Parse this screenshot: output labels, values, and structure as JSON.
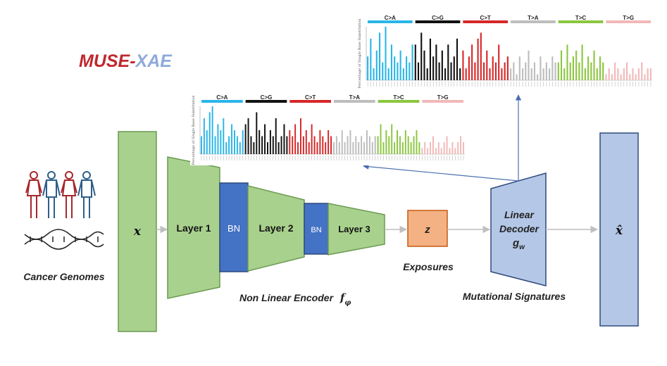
{
  "title": {
    "part1": "MUSE",
    "dash": "-",
    "part2": "XAE"
  },
  "colors": {
    "title_red": "#c0272d",
    "title_blue": "#8ea9db",
    "layer_fill": "#a9d18e",
    "layer_stroke": "#6b9a52",
    "bn_fill": "#4472c4",
    "z_fill": "#f4b183",
    "decoder_fill": "#b4c7e7",
    "decoder_stroke": "#2f4b7c",
    "arrow_gray": "#bfbfbf",
    "arrow_blue": "#4a6fb0",
    "genome_red": "#a6262b",
    "genome_blue": "#2e5f8a"
  },
  "labels": {
    "cancer_genomes": "Cancer Genomes",
    "input_x": "x",
    "layer1": "Layer 1",
    "bn1": "BN",
    "layer2": "Layer 2",
    "bn2": "BN",
    "layer3": "Layer 3",
    "z": "z",
    "exposures": "Exposures",
    "encoder": "Non Linear Encoder",
    "encoder_sym": "f",
    "encoder_sub": "φ",
    "decoder_line1": "Linear",
    "decoder_line2": "Decoder",
    "decoder_sym": "g",
    "decoder_sub": "w",
    "signatures": "Mutational Signatures",
    "output_x": "x̂"
  },
  "icons": [
    "woman-icon",
    "man-icon",
    "woman-icon",
    "man-icon",
    "dna-helix-icon"
  ],
  "signatures": [
    {
      "name": "signature-plot-top",
      "ylabel": "Percentage of Single Base Substitution",
      "categories": [
        {
          "label": "C>A",
          "color": "#29b6e8",
          "values": [
            4,
            7,
            2,
            5,
            8,
            3,
            9,
            2,
            6,
            4,
            3,
            5,
            2,
            4,
            3,
            6
          ]
        },
        {
          "label": "C>G",
          "color": "#111111",
          "values": [
            6,
            3,
            8,
            5,
            2,
            7,
            4,
            6,
            3,
            5,
            2,
            6,
            3,
            4,
            7,
            2
          ]
        },
        {
          "label": "C>T",
          "color": "#d62728",
          "values": [
            5,
            2,
            4,
            6,
            3,
            7,
            8,
            3,
            5,
            2,
            4,
            3,
            6,
            2,
            3,
            4
          ]
        },
        {
          "label": "T>A",
          "color": "#bdbdbd",
          "values": [
            2,
            3,
            1,
            4,
            2,
            3,
            5,
            2,
            3,
            1,
            4,
            2,
            3,
            2,
            4,
            3
          ]
        },
        {
          "label": "T>C",
          "color": "#8cc63f",
          "values": [
            3,
            5,
            2,
            6,
            3,
            4,
            5,
            3,
            6,
            2,
            4,
            3,
            5,
            2,
            4,
            3
          ]
        },
        {
          "label": "T>G",
          "color": "#f2b8b8",
          "values": [
            1,
            2,
            1,
            3,
            2,
            1,
            2,
            3,
            1,
            2,
            1,
            2,
            3,
            1,
            2,
            2
          ]
        }
      ]
    },
    {
      "name": "signature-plot-middle",
      "ylabel": "Percentage of Single Base Substitution",
      "categories": [
        {
          "label": "C>A",
          "color": "#29b6e8",
          "values": [
            3,
            6,
            4,
            7,
            8,
            3,
            5,
            4,
            6,
            2,
            3,
            5,
            4,
            3,
            2,
            4
          ]
        },
        {
          "label": "C>G",
          "color": "#111111",
          "values": [
            5,
            6,
            3,
            2,
            7,
            4,
            3,
            5,
            2,
            4,
            3,
            6,
            2,
            3,
            5,
            3
          ]
        },
        {
          "label": "C>T",
          "color": "#d62728",
          "values": [
            4,
            3,
            5,
            2,
            6,
            3,
            4,
            2,
            5,
            3,
            2,
            4,
            3,
            2,
            4,
            3
          ]
        },
        {
          "label": "T>A",
          "color": "#bdbdbd",
          "values": [
            2,
            3,
            2,
            4,
            2,
            3,
            4,
            2,
            3,
            2,
            3,
            2,
            4,
            3,
            2,
            3
          ]
        },
        {
          "label": "T>C",
          "color": "#8cc63f",
          "values": [
            3,
            5,
            2,
            4,
            3,
            5,
            2,
            4,
            3,
            2,
            4,
            3,
            2,
            3,
            4,
            2
          ]
        },
        {
          "label": "T>G",
          "color": "#f2b8b8",
          "values": [
            1,
            2,
            1,
            2,
            3,
            1,
            2,
            1,
            2,
            3,
            1,
            2,
            1,
            2,
            3,
            2
          ]
        }
      ]
    }
  ]
}
